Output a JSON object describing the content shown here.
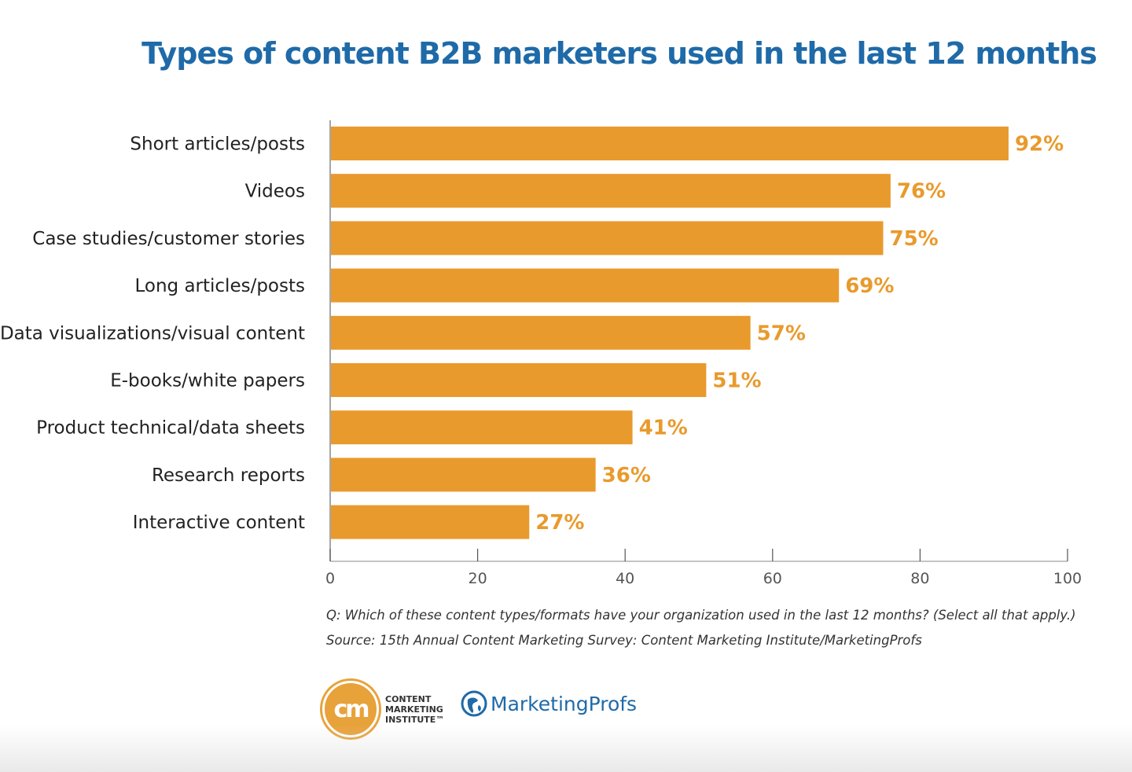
{
  "colors": {
    "title": "#1f6aa8",
    "bar": "#e99a2c",
    "value_label": "#e99a2c",
    "axis": "#888888",
    "brand_blue": "#1f6aa8",
    "brand_orange": "#e8a23a"
  },
  "chart_data": {
    "type": "bar",
    "orientation": "horizontal",
    "title": "Types of content B2B marketers used in the last 12 months",
    "categories": [
      "Short articles/posts",
      "Videos",
      "Case studies/customer stories",
      "Long articles/posts",
      "Data visualizations/visual content",
      "E-books/white papers",
      "Product technical/data sheets",
      "Research reports",
      "Interactive content"
    ],
    "values": [
      92,
      76,
      75,
      69,
      57,
      51,
      41,
      36,
      27
    ],
    "value_labels": [
      "92%",
      "76%",
      "75%",
      "69%",
      "57%",
      "51%",
      "41%",
      "36%",
      "27%"
    ],
    "xlim": [
      0,
      100
    ],
    "xticks": [
      0,
      20,
      40,
      60,
      80,
      100
    ],
    "xlabel": "",
    "ylabel": "",
    "grid": false,
    "legend": "none"
  },
  "footnotes": {
    "question": "Q: Which of these content types/formats have your organization used in the last 12 months? (Select all that apply.)",
    "source": "Source: 15th Annual Content Marketing Survey: Content Marketing Institute/MarketingProfs"
  },
  "logos": {
    "cmi": {
      "mark": "cm",
      "lines": [
        "CONTENT",
        "MARKETING",
        "INSTITUTE™"
      ]
    },
    "marketingprofs": {
      "icon": "globe-icon",
      "text": "MarketingProfs"
    }
  }
}
